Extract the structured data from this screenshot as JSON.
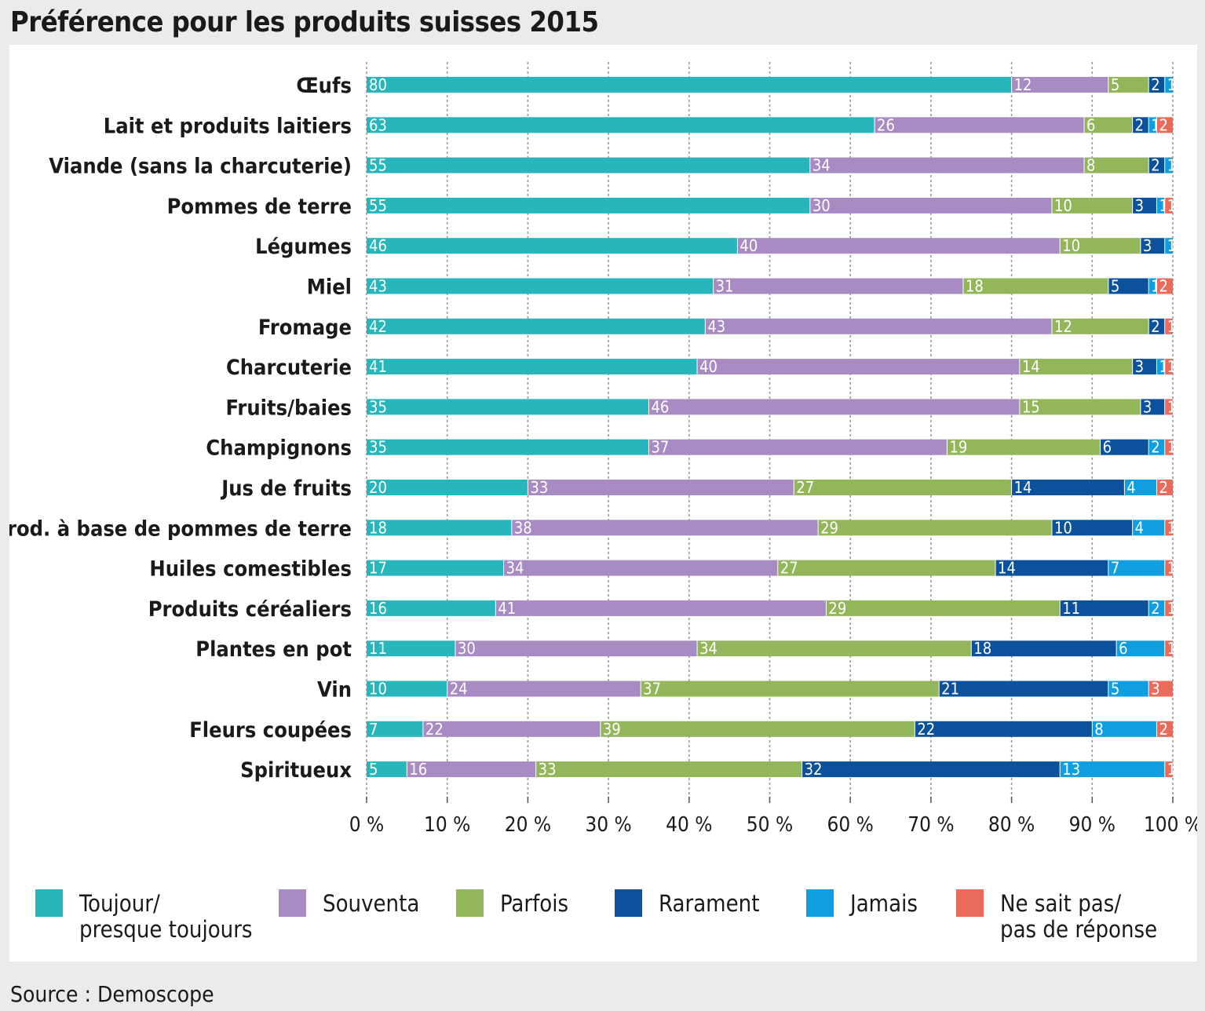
{
  "chart_data": {
    "type": "bar",
    "orientation": "horizontal",
    "stacked": true,
    "title": "Préférence pour les produits suisses 2015",
    "source": "Source : Demoscope",
    "xlabel": "",
    "ylabel": "",
    "xlim": [
      0,
      100
    ],
    "x_ticks": [
      "0 %",
      "10 %",
      "20 %",
      "30 %",
      "40 %",
      "50 %",
      "60 %",
      "70 %",
      "80 %",
      "90 %",
      "100 %"
    ],
    "categories": [
      "Œufs",
      "Lait et produits laitiers",
      "Viande (sans la charcuterie)",
      "Pommes de terre",
      "Légumes",
      "Miel",
      "Fromage",
      "Charcuterie",
      "Fruits/baies",
      "Champignons",
      "Jus de fruits",
      "Prod. à base de pommes de terre",
      "Huiles comestibles",
      "Produits céréaliers",
      "Plantes en pot",
      "Vin",
      "Fleurs coupées",
      "Spiritueux"
    ],
    "series": [
      {
        "name": "Toujour/ presque toujours",
        "legend_lines": [
          "Toujour/",
          "presque toujours"
        ],
        "color": "#27b6bc",
        "values": [
          80,
          63,
          55,
          55,
          46,
          43,
          42,
          41,
          35,
          35,
          20,
          18,
          17,
          16,
          11,
          10,
          7,
          5
        ]
      },
      {
        "name": "Souventa",
        "legend_lines": [
          "Souventa"
        ],
        "color": "#a98bc4",
        "values": [
          12,
          26,
          34,
          30,
          40,
          31,
          43,
          40,
          46,
          37,
          33,
          38,
          34,
          41,
          30,
          24,
          22,
          16
        ]
      },
      {
        "name": "Parfois",
        "legend_lines": [
          "Parfois"
        ],
        "color": "#93b65a",
        "values": [
          5,
          6,
          8,
          10,
          10,
          18,
          12,
          14,
          15,
          19,
          27,
          29,
          27,
          29,
          34,
          37,
          39,
          33
        ]
      },
      {
        "name": "Rarament",
        "legend_lines": [
          "Rarament"
        ],
        "color": "#0c519c",
        "values": [
          2,
          2,
          2,
          3,
          3,
          5,
          2,
          3,
          3,
          6,
          14,
          10,
          14,
          11,
          18,
          21,
          22,
          32
        ]
      },
      {
        "name": "Jamais",
        "legend_lines": [
          "Jamais"
        ],
        "color": "#0f9fe1",
        "values": [
          1,
          1,
          1,
          1,
          1,
          1,
          0,
          1,
          0,
          2,
          4,
          4,
          7,
          2,
          6,
          5,
          8,
          13
        ]
      },
      {
        "name": "Ne sait pas/ pas de réponse",
        "legend_lines": [
          "Ne sait pas/",
          "pas de réponse"
        ],
        "color": "#ea6b5c",
        "values": [
          0,
          2,
          0,
          1,
          0,
          2,
          1,
          1,
          1,
          1,
          2,
          1,
          1,
          1,
          1,
          3,
          2,
          1
        ]
      }
    ],
    "legend_position": "bottom",
    "grid": true
  }
}
